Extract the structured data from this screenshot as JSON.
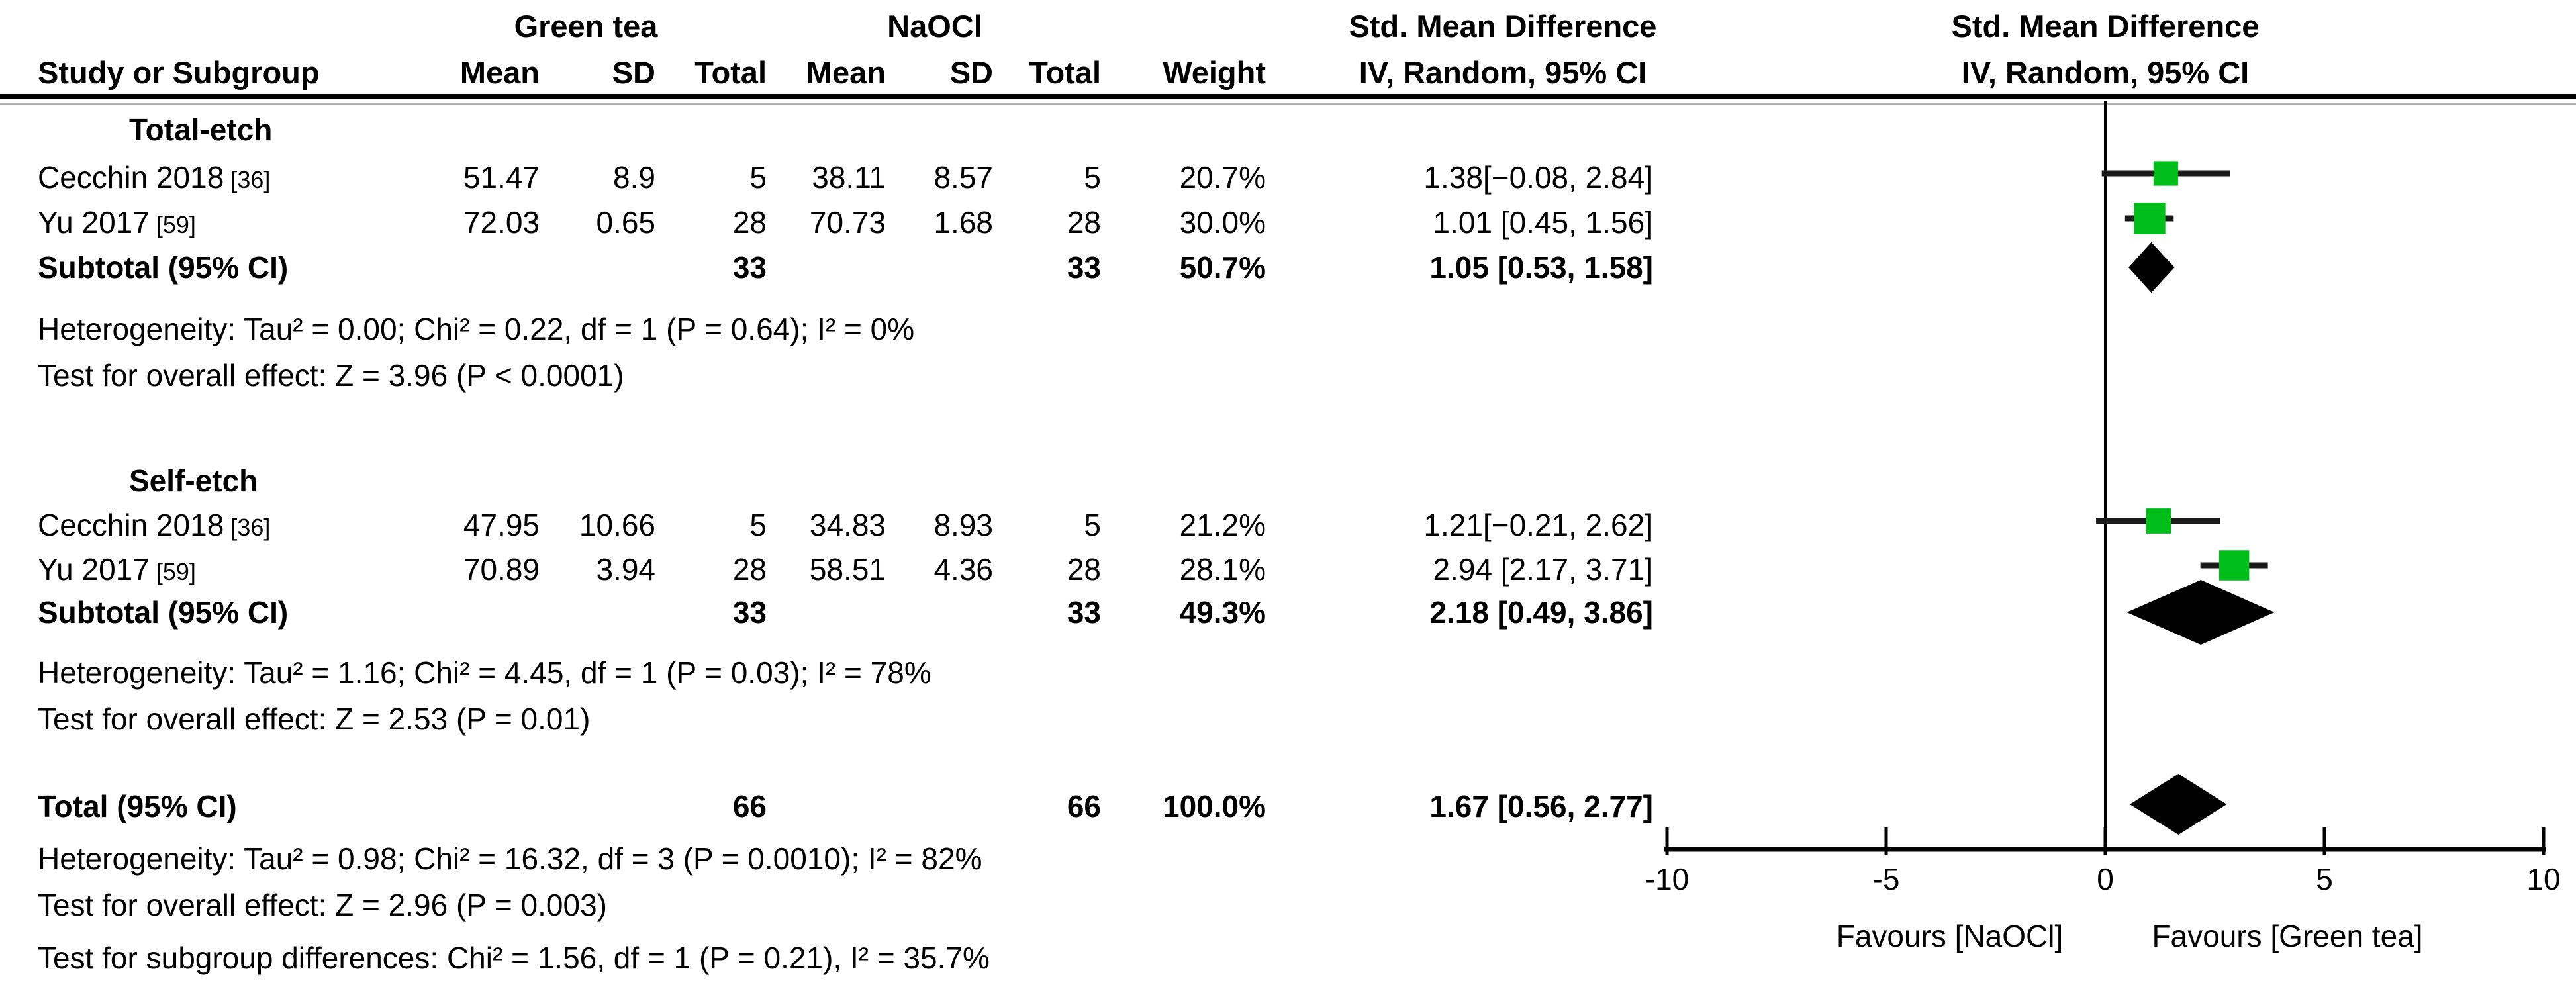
{
  "chart_data": {
    "type": "forest",
    "smd_title": "Std. Mean Difference",
    "smd_subtitle": "IV, Random, 95% CI",
    "group1_label": "Green tea",
    "group2_label": "NaOCl",
    "columns": {
      "study": "Study or Subgroup",
      "mean": "Mean",
      "sd": "SD",
      "total": "Total",
      "weight": "Weight"
    },
    "axis": {
      "min": -10,
      "max": 10,
      "ticks": [
        -10,
        -5,
        0,
        5,
        10
      ],
      "tick_labels": [
        "-10",
        "-5",
        "0",
        "5",
        "10"
      ],
      "favours_left": "Favours [NaOCl]",
      "favours_right": "Favours [Green tea]"
    },
    "groups": [
      {
        "name": "Total-etch",
        "studies": [
          {
            "study": "Cecchin 2018",
            "ref": "[36]",
            "mean_exp": "51.47",
            "sd_exp": "8.9",
            "n_exp": "5",
            "mean_ctl": "38.11",
            "sd_ctl": "8.57",
            "n_ctl": "5",
            "weight": "20.7%",
            "weight_pct": 20.7,
            "est": 1.38,
            "ci_lo": -0.08,
            "ci_hi": 2.84,
            "ci_text": "1.38[−0.08, 2.84]"
          },
          {
            "study": "Yu 2017",
            "ref": "[59]",
            "mean_exp": "72.03",
            "sd_exp": "0.65",
            "n_exp": "28",
            "mean_ctl": "70.73",
            "sd_ctl": "1.68",
            "n_ctl": "28",
            "weight": "30.0%",
            "weight_pct": 30.0,
            "est": 1.01,
            "ci_lo": 0.45,
            "ci_hi": 1.56,
            "ci_text": "1.01 [0.45, 1.56]"
          }
        ],
        "subtotal": {
          "label": "Subtotal (95% CI)",
          "n_exp": "33",
          "n_ctl": "33",
          "weight": "50.7%",
          "est": 1.05,
          "ci_lo": 0.53,
          "ci_hi": 1.58,
          "ci_text": "1.05 [0.53, 1.58]"
        },
        "heterogeneity": "Heterogeneity: Tau² = 0.00; Chi² = 0.22, df = 1 (P = 0.64); I² = 0%",
        "overall_effect": "Test for overall effect: Z = 3.96 (P < 0.0001)"
      },
      {
        "name": "Self-etch",
        "studies": [
          {
            "study": "Cecchin 2018",
            "ref": "[36]",
            "mean_exp": "47.95",
            "sd_exp": "10.66",
            "n_exp": "5",
            "mean_ctl": "34.83",
            "sd_ctl": "8.93",
            "n_ctl": "5",
            "weight": "21.2%",
            "weight_pct": 21.2,
            "est": 1.21,
            "ci_lo": -0.21,
            "ci_hi": 2.62,
            "ci_text": "1.21[−0.21, 2.62]"
          },
          {
            "study": "Yu 2017",
            "ref": "[59]",
            "mean_exp": "70.89",
            "sd_exp": "3.94",
            "n_exp": "28",
            "mean_ctl": "58.51",
            "sd_ctl": "4.36",
            "n_ctl": "28",
            "weight": "28.1%",
            "weight_pct": 28.1,
            "est": 2.94,
            "ci_lo": 2.17,
            "ci_hi": 3.71,
            "ci_text": "2.94 [2.17, 3.71]"
          }
        ],
        "subtotal": {
          "label": "Subtotal (95% CI)",
          "n_exp": "33",
          "n_ctl": "33",
          "weight": "49.3%",
          "est": 2.18,
          "ci_lo": 0.49,
          "ci_hi": 3.86,
          "ci_text": "2.18 [0.49, 3.86]"
        },
        "heterogeneity": "Heterogeneity: Tau² = 1.16; Chi² = 4.45, df = 1 (P = 0.03); I² = 78%",
        "overall_effect": "Test for overall effect: Z = 2.53 (P = 0.01)"
      }
    ],
    "total": {
      "label": "Total (95% CI)",
      "n_exp": "66",
      "n_ctl": "66",
      "weight": "100.0%",
      "est": 1.67,
      "ci_lo": 0.56,
      "ci_hi": 2.77,
      "ci_text": "1.67 [0.56, 2.77]"
    },
    "footer": {
      "heterogeneity": "Heterogeneity: Tau² = 0.98; Chi² = 16.32, df = 3 (P = 0.0010); I² = 82%",
      "overall_effect": "Test for overall effect: Z = 2.96 (P = 0.003)",
      "subgroup_diff": "Test for subgroup differences: Chi² = 1.56, df = 1 (P = 0.21), I² = 35.7%"
    },
    "colors": {
      "square": "#00BE19",
      "diamond": "#000000",
      "ci_line": "#1a1a1a",
      "text": "#000000"
    }
  }
}
